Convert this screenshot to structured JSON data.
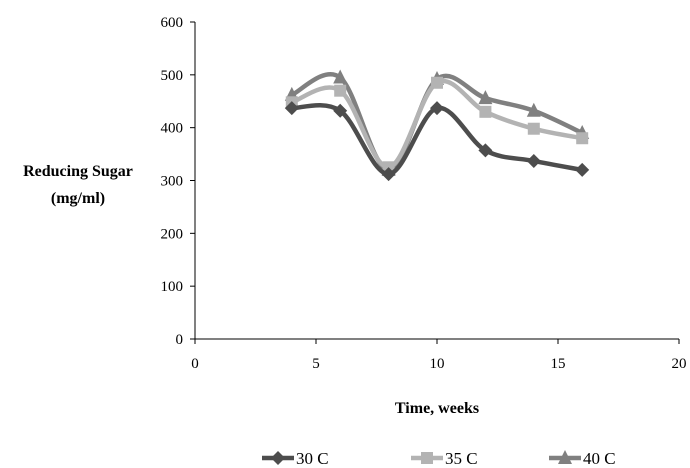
{
  "chart_data": {
    "type": "line",
    "smooth": true,
    "title": "",
    "xlabel": "Time, weeks",
    "ylabel_lines": [
      "Reducing Sugar",
      "(mg/ml)"
    ],
    "xlim": [
      0,
      20
    ],
    "ylim": [
      0,
      600
    ],
    "xticks": [
      0,
      5,
      10,
      15,
      20
    ],
    "yticks": [
      0,
      100,
      200,
      300,
      400,
      500,
      600
    ],
    "grid": false,
    "legend_position": "bottom",
    "series": [
      {
        "name": "30 C",
        "marker": "diamond",
        "color": "#4d4d4d",
        "x": [
          4,
          6,
          8,
          10,
          12,
          14,
          16
        ],
        "y": [
          437,
          432,
          312,
          437,
          357,
          337,
          320
        ]
      },
      {
        "name": "35 C",
        "marker": "square",
        "color": "#b3b3b3",
        "x": [
          4,
          6,
          8,
          10,
          12,
          14,
          16
        ],
        "y": [
          448,
          470,
          325,
          485,
          430,
          398,
          380
        ]
      },
      {
        "name": "40 C",
        "marker": "triangle",
        "color": "#808080",
        "x": [
          4,
          6,
          8,
          10,
          12,
          14,
          16
        ],
        "y": [
          462,
          495,
          320,
          492,
          456,
          432,
          390
        ]
      }
    ]
  }
}
